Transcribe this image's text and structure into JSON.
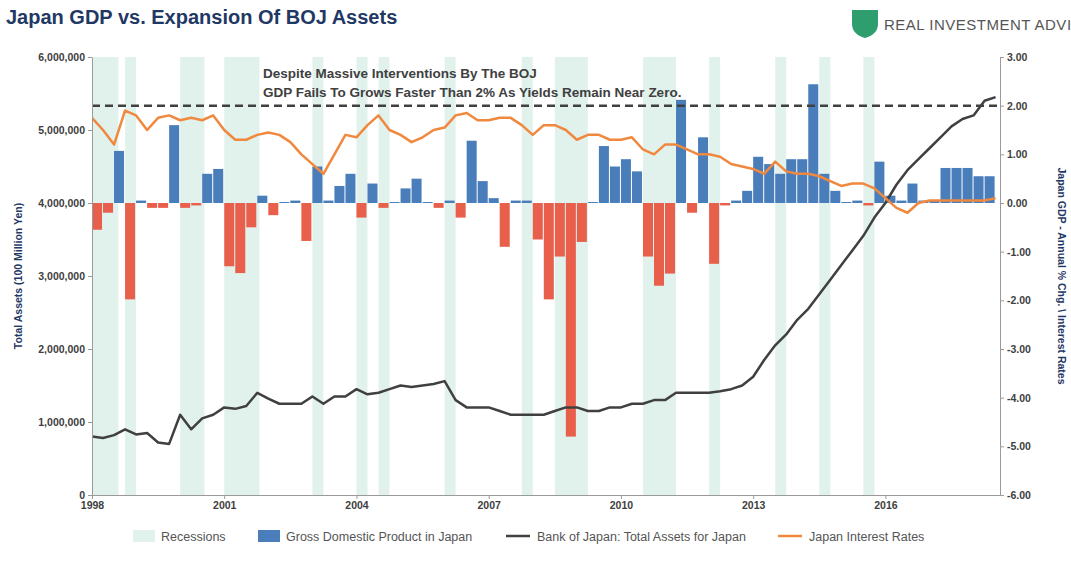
{
  "chart_data": {
    "type": "bar",
    "title": "Japan GDP vs. Expansion Of BOJ Assets",
    "logo": "REAL INVESTMENT ADVICE",
    "annotation": [
      "Despite Massive Interventions By The BOJ",
      "GDP Fails To Grows Faster Than 2% As Yields Remain Near Zero."
    ],
    "y_label": "Total Assets (100 Million Yen)",
    "y2_label": "Japan GDP - Annual % Chg. \\ Interest Rates",
    "xlim": [
      1998,
      2018.6
    ],
    "xticks": [
      1998,
      2001,
      2004,
      2007,
      2010,
      2013,
      2016
    ],
    "ylim": [
      0,
      6000000
    ],
    "yticks": [
      {
        "value": 0,
        "label": "0"
      },
      {
        "value": 1000000,
        "label": "1,000,000"
      },
      {
        "value": 2000000,
        "label": "2,000,000"
      },
      {
        "value": 3000000,
        "label": "3,000,000"
      },
      {
        "value": 4000000,
        "label": "4,000,000"
      },
      {
        "value": 5000000,
        "label": "5,000,000"
      },
      {
        "value": 6000000,
        "label": "6,000,000"
      }
    ],
    "y2lim": [
      -6,
      3
    ],
    "y2ticks": [
      {
        "value": -6,
        "label": "-6.00"
      },
      {
        "value": -5,
        "label": "-5.00"
      },
      {
        "value": -4,
        "label": "-4.00"
      },
      {
        "value": -3,
        "label": "-3.00"
      },
      {
        "value": -2,
        "label": "-2.00"
      },
      {
        "value": -1,
        "label": "-1.00"
      },
      {
        "value": 0,
        "label": "0.00"
      },
      {
        "value": 1,
        "label": "1.00"
      },
      {
        "value": 2,
        "label": "2.00"
      },
      {
        "value": 3,
        "label": "3.00"
      }
    ],
    "grid": false,
    "legend": "bottom",
    "reference_lines": [
      {
        "value": 2,
        "axis": "y2",
        "line_style": "dashed",
        "color": "#404040"
      }
    ],
    "series": [
      {
        "name": "Recessions",
        "type": "span",
        "color": "#e1f2ed",
        "starts": [
          1998,
          1998.75,
          2000,
          2001,
          2003,
          2004,
          2004.5,
          2006,
          2007.75,
          2008.5,
          2010.5,
          2012,
          2013.5,
          2014.5,
          2015.5
        ],
        "ends": [
          1998.6,
          1999,
          2000.55,
          2001.8,
          2003.25,
          2004.25,
          2004.75,
          2006.25,
          2008,
          2009.25,
          2011.25,
          2012.25,
          2013.75,
          2014.75,
          2015.75
        ]
      },
      {
        "name": "Gross Domestic Product in Japan",
        "type": "bar",
        "axis": "y2",
        "color": "#4a7ebb",
        "x": [
          1998,
          1998.25,
          1998.5,
          1998.75,
          1999,
          1999.25,
          1999.5,
          1999.75,
          2000,
          2000.25,
          2000.5,
          2000.75,
          2001,
          2001.25,
          2001.5,
          2001.75,
          2002,
          2002.25,
          2002.5,
          2002.75,
          2003,
          2003.25,
          2003.5,
          2003.75,
          2004,
          2004.25,
          2004.5,
          2004.75,
          2005,
          2005.25,
          2005.5,
          2005.75,
          2006,
          2006.25,
          2006.5,
          2006.75,
          2007,
          2007.25,
          2007.5,
          2007.75,
          2008,
          2008.25,
          2008.5,
          2008.75,
          2009,
          2009.25,
          2009.5,
          2009.75,
          2010,
          2010.25,
          2010.5,
          2010.75,
          2011,
          2011.25,
          2011.5,
          2011.75,
          2012,
          2012.25,
          2012.5,
          2012.75,
          2013,
          2013.25,
          2013.5,
          2013.75,
          2014,
          2014.25,
          2014.5,
          2014.75,
          2015,
          2015.25,
          2015.5,
          2015.75,
          2016,
          2016.25,
          2016.5,
          2016.75,
          2017,
          2017.25,
          2017.5,
          2017.75,
          2018,
          2018.25
        ],
        "values": [
          -0.55,
          -0.2,
          1.07,
          -1.98,
          0.05,
          -0.1,
          -0.1,
          1.6,
          -0.1,
          -0.05,
          0.6,
          0.7,
          -1.3,
          -1.44,
          -0.5,
          0.15,
          -0.25,
          0.02,
          0.05,
          -0.78,
          0.75,
          0.05,
          0.35,
          0.6,
          -0.3,
          0.4,
          -0.1,
          0.02,
          0.3,
          0.5,
          0.02,
          -0.1,
          0.05,
          -0.3,
          1.28,
          0.45,
          0.1,
          -0.9,
          0.05,
          0.05,
          -0.75,
          -1.98,
          -1.1,
          -4.8,
          -0.8,
          0.02,
          1.17,
          0.75,
          0.9,
          0.65,
          -1.1,
          -1.7,
          -1.45,
          2.12,
          -0.2,
          1.35,
          -1.25,
          -0.05,
          0.05,
          0.25,
          0.95,
          0.8,
          0.6,
          0.9,
          0.9,
          2.44,
          0.6,
          0.25,
          0.02,
          0.05,
          -0.05,
          0.85,
          0.15,
          0.05,
          0.4,
          0.05,
          0.05,
          0.72,
          0.72,
          0.72,
          0.55,
          0.55
        ],
        "colors": [
          "#e8604c",
          "#e8604c",
          "#4a7ebb",
          "#e8604c",
          "#4a7ebb",
          "#e8604c",
          "#e8604c",
          "#4a7ebb",
          "#e8604c",
          "#e8604c",
          "#4a7ebb",
          "#4a7ebb",
          "#e8604c",
          "#e8604c",
          "#e8604c",
          "#4a7ebb",
          "#e8604c",
          "#4a7ebb",
          "#4a7ebb",
          "#e8604c",
          "#4a7ebb",
          "#4a7ebb",
          "#4a7ebb",
          "#4a7ebb",
          "#e8604c",
          "#4a7ebb",
          "#e8604c",
          "#4a7ebb",
          "#4a7ebb",
          "#4a7ebb",
          "#4a7ebb",
          "#e8604c",
          "#4a7ebb",
          "#e8604c",
          "#4a7ebb",
          "#4a7ebb",
          "#4a7ebb",
          "#e8604c",
          "#4a7ebb",
          "#4a7ebb",
          "#e8604c",
          "#e8604c",
          "#e8604c",
          "#e8604c",
          "#e8604c",
          "#4a7ebb",
          "#4a7ebb",
          "#4a7ebb",
          "#4a7ebb",
          "#4a7ebb",
          "#e8604c",
          "#e8604c",
          "#e8604c",
          "#4a7ebb",
          "#e8604c",
          "#4a7ebb",
          "#e8604c",
          "#e8604c",
          "#4a7ebb",
          "#4a7ebb",
          "#4a7ebb",
          "#4a7ebb",
          "#4a7ebb",
          "#4a7ebb",
          "#4a7ebb",
          "#4a7ebb",
          "#4a7ebb",
          "#4a7ebb",
          "#4a7ebb",
          "#4a7ebb",
          "#e8604c",
          "#4a7ebb",
          "#4a7ebb",
          "#4a7ebb",
          "#4a7ebb",
          "#4a7ebb",
          "#4a7ebb",
          "#4a7ebb",
          "#4a7ebb",
          "#4a7ebb",
          "#4a7ebb",
          "#4a7ebb"
        ]
      },
      {
        "name": "Bank of Japan: Total Assets for Japan",
        "type": "line",
        "color": "#404040",
        "x": [
          1998,
          1998.25,
          1998.5,
          1998.75,
          1999,
          1999.25,
          1999.5,
          1999.75,
          2000,
          2000.25,
          2000.5,
          2000.75,
          2001,
          2001.25,
          2001.5,
          2001.75,
          2002,
          2002.25,
          2002.5,
          2002.75,
          2003,
          2003.25,
          2003.5,
          2003.75,
          2004,
          2004.25,
          2004.5,
          2004.75,
          2005,
          2005.25,
          2005.5,
          2005.75,
          2006,
          2006.25,
          2006.5,
          2006.75,
          2007,
          2007.25,
          2007.5,
          2007.75,
          2008,
          2008.25,
          2008.5,
          2008.75,
          2009,
          2009.25,
          2009.5,
          2009.75,
          2010,
          2010.25,
          2010.5,
          2010.75,
          2011,
          2011.25,
          2011.5,
          2011.75,
          2012,
          2012.25,
          2012.5,
          2012.75,
          2013,
          2013.25,
          2013.5,
          2013.75,
          2014,
          2014.25,
          2014.5,
          2014.75,
          2015,
          2015.25,
          2015.5,
          2015.75,
          2016,
          2016.25,
          2016.5,
          2016.75,
          2017,
          2017.25,
          2017.5,
          2017.75,
          2018,
          2018.25,
          2018.5
        ],
        "values": [
          800000,
          780000,
          820000,
          900000,
          830000,
          850000,
          720000,
          700000,
          1100000,
          900000,
          1050000,
          1100000,
          1200000,
          1180000,
          1220000,
          1400000,
          1320000,
          1250000,
          1250000,
          1250000,
          1350000,
          1250000,
          1350000,
          1350000,
          1450000,
          1380000,
          1400000,
          1450000,
          1500000,
          1480000,
          1500000,
          1520000,
          1560000,
          1300000,
          1200000,
          1200000,
          1200000,
          1150000,
          1100000,
          1100000,
          1100000,
          1100000,
          1150000,
          1200000,
          1200000,
          1150000,
          1150000,
          1200000,
          1200000,
          1250000,
          1250000,
          1300000,
          1300000,
          1400000,
          1400000,
          1400000,
          1400000,
          1420000,
          1450000,
          1500000,
          1620000,
          1850000,
          2050000,
          2200000,
          2400000,
          2550000,
          2750000,
          2950000,
          3150000,
          3350000,
          3550000,
          3800000,
          4000000,
          4250000,
          4450000,
          4600000,
          4750000,
          4900000,
          5050000,
          5150000,
          5200000,
          5400000,
          5450000
        ]
      },
      {
        "name": "Japan Interest Rates",
        "type": "line",
        "axis": "y2",
        "color": "#f0883e",
        "x": [
          1998,
          1998.25,
          1998.5,
          1998.75,
          1999,
          1999.25,
          1999.5,
          1999.75,
          2000,
          2000.25,
          2000.5,
          2000.75,
          2001,
          2001.25,
          2001.5,
          2001.75,
          2002,
          2002.25,
          2002.5,
          2002.75,
          2003,
          2003.25,
          2003.5,
          2003.75,
          2004,
          2004.25,
          2004.5,
          2004.75,
          2005,
          2005.25,
          2005.5,
          2005.75,
          2006,
          2006.25,
          2006.5,
          2006.75,
          2007,
          2007.25,
          2007.5,
          2007.75,
          2008,
          2008.25,
          2008.5,
          2008.75,
          2009,
          2009.25,
          2009.5,
          2009.75,
          2010,
          2010.25,
          2010.5,
          2010.75,
          2011,
          2011.25,
          2011.5,
          2011.75,
          2012,
          2012.25,
          2012.5,
          2012.75,
          2013,
          2013.25,
          2013.5,
          2013.75,
          2014,
          2014.25,
          2014.5,
          2014.75,
          2015,
          2015.25,
          2015.5,
          2015.75,
          2016,
          2016.25,
          2016.5,
          2016.75,
          2017,
          2017.25,
          2017.5,
          2017.75,
          2018,
          2018.25,
          2018.5
        ],
        "values": [
          1.75,
          1.5,
          1.2,
          1.9,
          1.8,
          1.5,
          1.75,
          1.8,
          1.7,
          1.75,
          1.7,
          1.8,
          1.5,
          1.3,
          1.3,
          1.4,
          1.45,
          1.4,
          1.25,
          1.0,
          0.8,
          0.6,
          1.0,
          1.4,
          1.35,
          1.6,
          1.8,
          1.5,
          1.4,
          1.25,
          1.35,
          1.5,
          1.55,
          1.8,
          1.85,
          1.7,
          1.7,
          1.75,
          1.75,
          1.6,
          1.4,
          1.6,
          1.6,
          1.5,
          1.3,
          1.4,
          1.4,
          1.3,
          1.3,
          1.35,
          1.1,
          1.0,
          1.2,
          1.2,
          1.1,
          1.0,
          1.0,
          0.95,
          0.8,
          0.75,
          0.7,
          0.6,
          0.85,
          0.65,
          0.6,
          0.6,
          0.55,
          0.45,
          0.35,
          0.4,
          0.4,
          0.3,
          0.1,
          -0.1,
          -0.2,
          0.0,
          0.05,
          0.05,
          0.05,
          0.05,
          0.05,
          0.05,
          0.1
        ]
      }
    ]
  }
}
